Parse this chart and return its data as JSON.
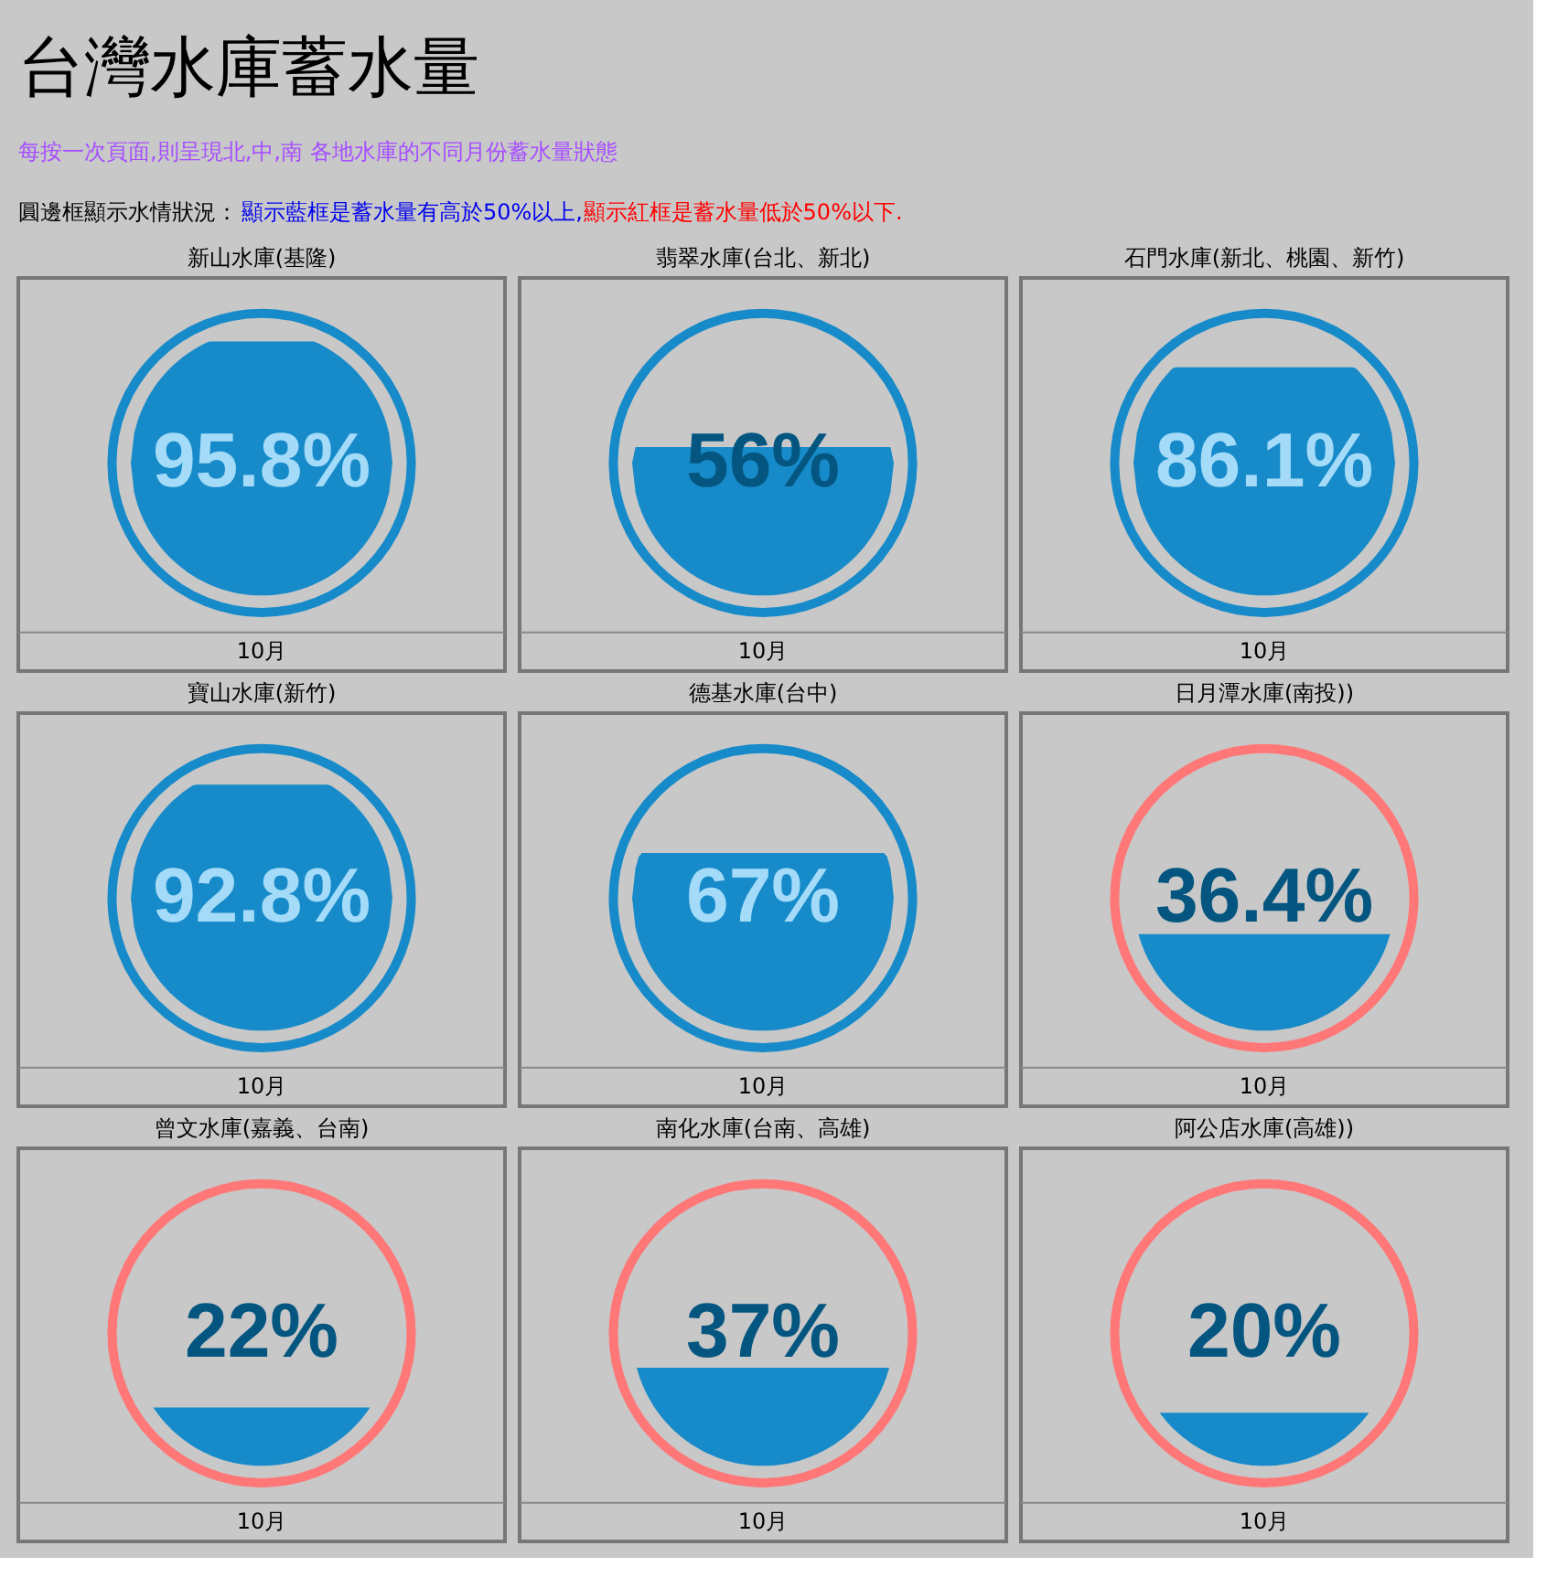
{
  "chart_data": {
    "type": "other",
    "title": "台灣水庫蓄水量",
    "subtitle": "每按一次頁面,則呈現北,中,南 各地水庫的不同月份蓄水量狀態",
    "annotations": [
      "圓邊框顯示水情狀況：",
      "顯示藍框是蓄水量有高於50%以上,",
      "顯示紅框是蓄水量低於50%以下."
    ],
    "categories": [
      "新山水庫(基隆)",
      "翡翠水庫(台北、新北)",
      "石門水庫(新北、桃園、新竹)",
      "寶山水庫(新竹)",
      "德基水庫(台中)",
      "日月潭水庫(南投))",
      "曾文水庫(嘉義、台南)",
      "南化水庫(台南、高雄)",
      "阿公店水庫(高雄))"
    ],
    "values": [
      95.8,
      56,
      86.1,
      92.8,
      67,
      36.4,
      22,
      37,
      20
    ],
    "value_labels": [
      "95.8%",
      "56%",
      "86.1%",
      "92.8%",
      "67%",
      "36.4%",
      "22%",
      "37%",
      "20%"
    ],
    "xlabel": "10月",
    "color": "#178bca",
    "colors": [
      "#178bca",
      "#178bca",
      "#178bca",
      "#178bca",
      "#178bca",
      "#ff7777",
      "#ff7777",
      "#ff7777",
      "#ff7777"
    ]
  }
}
